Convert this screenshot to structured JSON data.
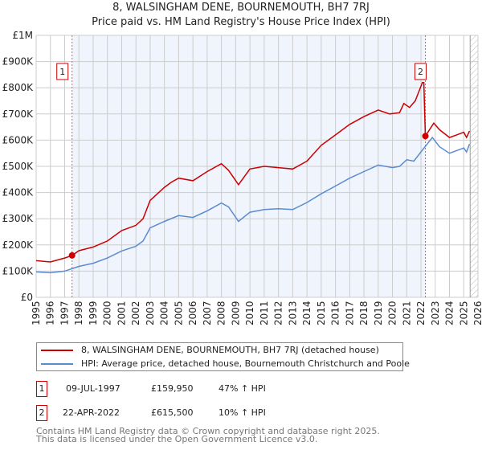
{
  "chart_data": {
    "type": "line",
    "title": "8, WALSINGHAM DENE, BOURNEMOUTH, BH7 7RJ",
    "subtitle": "Price paid vs. HM Land Registry's House Price Index (HPI)",
    "xlim": [
      1995,
      2026
    ],
    "ylim": [
      0,
      1000000
    ],
    "x_ticks": [
      "1995",
      "1996",
      "1997",
      "1998",
      "1999",
      "2000",
      "2001",
      "2002",
      "2003",
      "2004",
      "2005",
      "2006",
      "2007",
      "2008",
      "2009",
      "2010",
      "2011",
      "2012",
      "2013",
      "2014",
      "2015",
      "2016",
      "2017",
      "2018",
      "2019",
      "2020",
      "2021",
      "2022",
      "2023",
      "2024",
      "2025",
      "2026"
    ],
    "y_ticks": [
      {
        "v": 0,
        "label": "£0"
      },
      {
        "v": 100000,
        "label": "£100K"
      },
      {
        "v": 200000,
        "label": "£200K"
      },
      {
        "v": 300000,
        "label": "£300K"
      },
      {
        "v": 400000,
        "label": "£400K"
      },
      {
        "v": 500000,
        "label": "£500K"
      },
      {
        "v": 600000,
        "label": "£600K"
      },
      {
        "v": 700000,
        "label": "£700K"
      },
      {
        "v": 800000,
        "label": "£800K"
      },
      {
        "v": 900000,
        "label": "£900K"
      },
      {
        "v": 1000000,
        "label": "£1M"
      }
    ],
    "grid": true,
    "series": [
      {
        "name": "8, WALSINGHAM DENE, BOURNEMOUTH, BH7 7RJ (detached house)",
        "color": "#cc0000",
        "points": [
          [
            1995,
            140000
          ],
          [
            1996,
            135000
          ],
          [
            1997,
            150000
          ],
          [
            1997.52,
            159950
          ],
          [
            1998,
            178000
          ],
          [
            1999,
            192000
          ],
          [
            2000,
            215000
          ],
          [
            2001,
            255000
          ],
          [
            2002,
            275000
          ],
          [
            2002.5,
            300000
          ],
          [
            2003,
            370000
          ],
          [
            2004,
            420000
          ],
          [
            2004.5,
            440000
          ],
          [
            2005,
            455000
          ],
          [
            2006,
            445000
          ],
          [
            2007,
            480000
          ],
          [
            2008,
            510000
          ],
          [
            2008.5,
            485000
          ],
          [
            2009.2,
            430000
          ],
          [
            2010,
            490000
          ],
          [
            2011,
            500000
          ],
          [
            2012,
            495000
          ],
          [
            2013,
            490000
          ],
          [
            2014,
            520000
          ],
          [
            2015,
            580000
          ],
          [
            2016,
            620000
          ],
          [
            2017,
            660000
          ],
          [
            2018,
            690000
          ],
          [
            2019,
            715000
          ],
          [
            2019.8,
            700000
          ],
          [
            2020.5,
            705000
          ],
          [
            2020.8,
            740000
          ],
          [
            2021.2,
            725000
          ],
          [
            2021.6,
            750000
          ],
          [
            2022.1,
            820000
          ],
          [
            2022.2,
            820000
          ],
          [
            2022.31,
            615500
          ],
          [
            2022.9,
            665000
          ],
          [
            2023.3,
            640000
          ],
          [
            2024,
            610000
          ],
          [
            2024.5,
            620000
          ],
          [
            2025,
            630000
          ],
          [
            2025.2,
            610000
          ],
          [
            2025.4,
            635000
          ]
        ]
      },
      {
        "name": "HPI: Average price, detached house, Bournemouth Christchurch and Poole",
        "color": "#5b8bd0",
        "points": [
          [
            1995,
            97000
          ],
          [
            1996,
            94000
          ],
          [
            1997,
            100000
          ],
          [
            1998,
            118000
          ],
          [
            1999,
            130000
          ],
          [
            2000,
            150000
          ],
          [
            2001,
            177000
          ],
          [
            2002,
            195000
          ],
          [
            2002.5,
            215000
          ],
          [
            2003,
            265000
          ],
          [
            2004,
            290000
          ],
          [
            2005,
            312000
          ],
          [
            2006,
            305000
          ],
          [
            2007,
            330000
          ],
          [
            2008,
            360000
          ],
          [
            2008.5,
            345000
          ],
          [
            2009.2,
            290000
          ],
          [
            2010,
            325000
          ],
          [
            2011,
            335000
          ],
          [
            2012,
            338000
          ],
          [
            2013,
            335000
          ],
          [
            2014,
            362000
          ],
          [
            2015,
            395000
          ],
          [
            2016,
            425000
          ],
          [
            2017,
            455000
          ],
          [
            2018,
            480000
          ],
          [
            2019,
            505000
          ],
          [
            2020,
            495000
          ],
          [
            2020.5,
            500000
          ],
          [
            2021,
            525000
          ],
          [
            2021.5,
            520000
          ],
          [
            2022,
            555000
          ],
          [
            2022.8,
            610000
          ],
          [
            2023.3,
            575000
          ],
          [
            2024,
            550000
          ],
          [
            2024.5,
            560000
          ],
          [
            2025,
            570000
          ],
          [
            2025.2,
            555000
          ],
          [
            2025.4,
            585000
          ]
        ]
      }
    ],
    "sales": [
      {
        "id": "1",
        "year": 1997.52,
        "price": 159950
      },
      {
        "id": "2",
        "year": 2022.31,
        "price": 615500
      }
    ]
  },
  "legend": {
    "property": "8, WALSINGHAM DENE, BOURNEMOUTH, BH7 7RJ (detached house)",
    "hpi": "HPI: Average price, detached house, Bournemouth Christchurch and Poole"
  },
  "transactions": [
    {
      "id": "1",
      "date": "09-JUL-1997",
      "price": "£159,950",
      "hpi": "47% ↑ HPI"
    },
    {
      "id": "2",
      "date": "22-APR-2022",
      "price": "£615,500",
      "hpi": "10% ↑ HPI"
    }
  ],
  "footer": {
    "line1": "Contains HM Land Registry data © Crown copyright and database right 2025.",
    "line2": "This data is licensed under the Open Government Licence v3.0."
  }
}
